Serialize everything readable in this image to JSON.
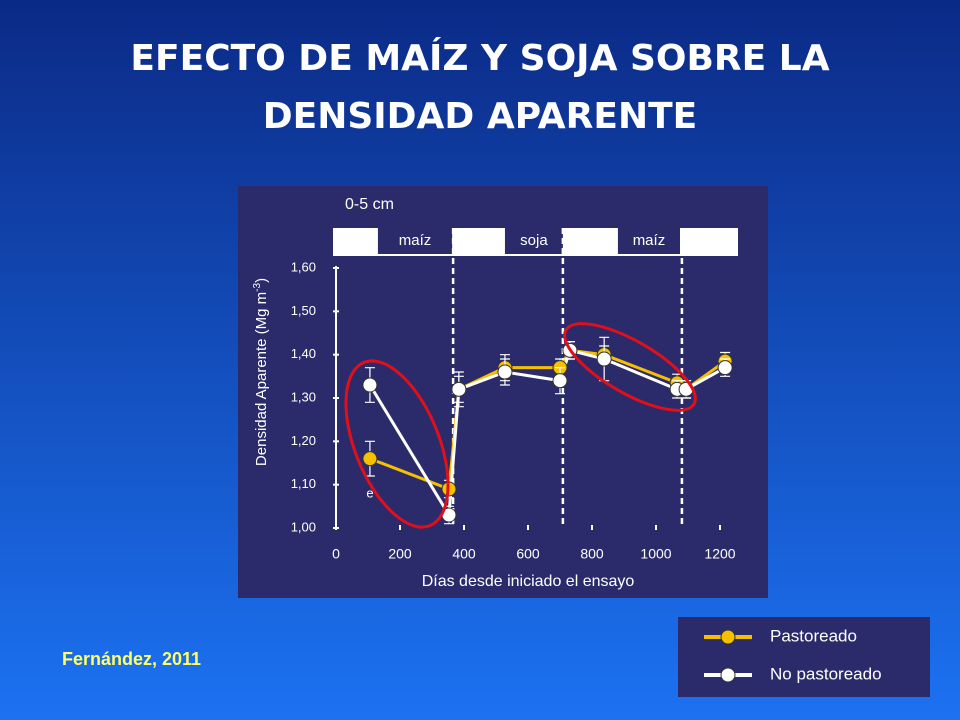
{
  "chart_data": {
    "type": "line",
    "title_lines": [
      "EFECTO DE MAÍZ Y SOJA SOBRE LA",
      "DENSIDAD APARENTE"
    ],
    "depth_label": "0-5 cm",
    "phases": [
      {
        "name": "maíz",
        "x": [
          131,
          363
        ]
      },
      {
        "name": "soja",
        "x": [
          528,
          709
        ]
      },
      {
        "name": "maíz",
        "x": [
          881,
          1075
        ]
      }
    ],
    "dividers": [
      366,
      709,
      1081
    ],
    "ylabel": "Densidad Aparente  (Mg m",
    "ylabel_sup": "-3",
    "ylabel_end": ")",
    "xlabel": "Días desde iniciado el ensayo",
    "annotation": "e",
    "source": "Fernández, 2011",
    "xlim": [
      0,
      1200
    ],
    "xticks": [
      0,
      200,
      400,
      600,
      800,
      1000,
      1200
    ],
    "ylim": [
      1.0,
      1.6
    ],
    "yticks": [
      {
        "value": 1.0,
        "label": "1,00"
      },
      {
        "value": 1.1,
        "label": "1,10"
      },
      {
        "value": 1.2,
        "label": "1,20"
      },
      {
        "value": 1.3,
        "label": "1,30"
      },
      {
        "value": 1.4,
        "label": "1,40"
      },
      {
        "value": 1.5,
        "label": "1,50"
      },
      {
        "value": 1.6,
        "label": "1,60"
      }
    ],
    "x": [
      106,
      353,
      384,
      528,
      700,
      731,
      838,
      1066,
      1094,
      1216
    ],
    "series": [
      {
        "name": "Pastoreado",
        "color": "#f5c000",
        "values": [
          1.16,
          1.09,
          1.32,
          1.37,
          1.37,
          1.41,
          1.4,
          1.335,
          1.32,
          1.385
        ],
        "errors": [
          0.04,
          0.02,
          0.03,
          0.03,
          0.02,
          0.02,
          0.02,
          0.02,
          0.02,
          0.02
        ]
      },
      {
        "name": "No pastoreado",
        "color": "#ffffff",
        "values": [
          1.33,
          1.03,
          1.32,
          1.36,
          1.34,
          1.41,
          1.39,
          1.32,
          1.32,
          1.37
        ],
        "errors": [
          0.04,
          0.02,
          0.04,
          0.03,
          0.03,
          0.02,
          0.05,
          0.02,
          0.02,
          0.02
        ]
      }
    ]
  }
}
